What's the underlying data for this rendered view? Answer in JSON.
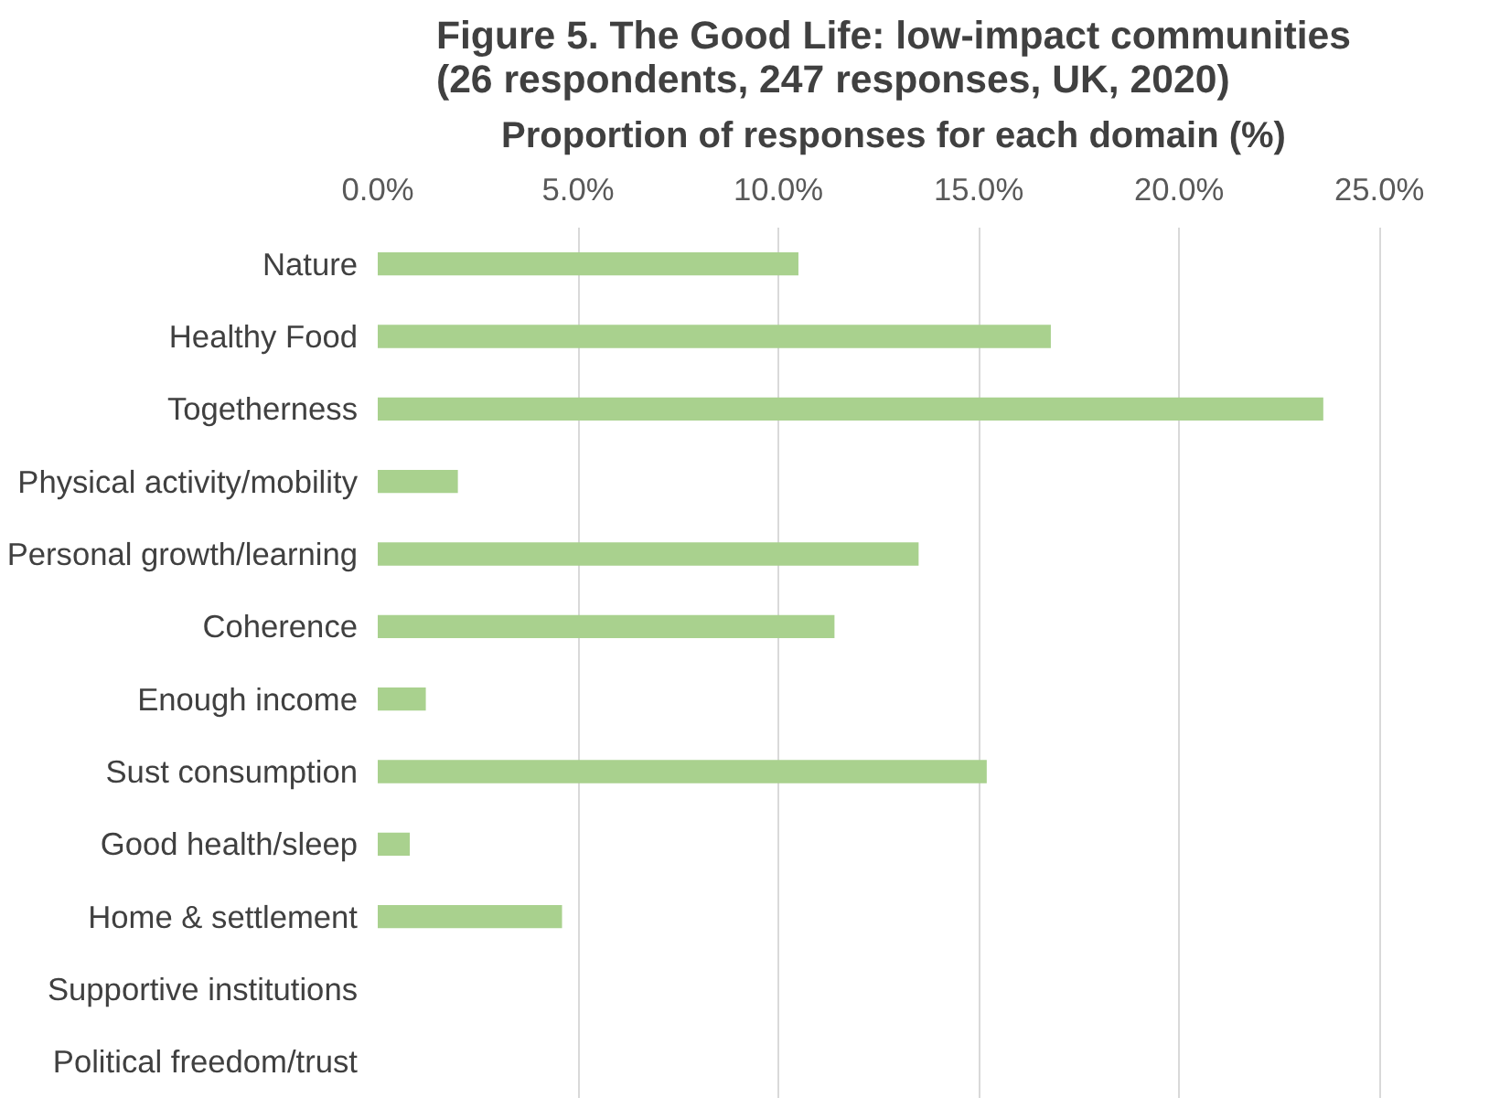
{
  "chart_data": {
    "type": "bar",
    "orientation": "horizontal",
    "title": "Figure 5. The Good Life: low-impact communities\n(26 respondents, 247 responses, UK, 2020)",
    "xlabel": "Proportion of responses for each domain (%)",
    "categories": [
      "Nature",
      "Healthy Food",
      "Togetherness",
      "Physical activity/mobility",
      "Personal growth/learning",
      "Coherence",
      "Enough income",
      "Sust consumption",
      "Good health/sleep",
      "Home & settlement",
      "Supportive institutions",
      "Political freedom/trust"
    ],
    "values": [
      10.5,
      16.8,
      23.6,
      2.0,
      13.5,
      11.4,
      1.2,
      15.2,
      0.8,
      4.6,
      0,
      0
    ],
    "color": "#a9d18e",
    "xlim": [
      0,
      25
    ],
    "xticks": [
      {
        "value": 0,
        "label": "0.0%"
      },
      {
        "value": 5,
        "label": "5.0%"
      },
      {
        "value": 10,
        "label": "10.0%"
      },
      {
        "value": 15,
        "label": "15.0%"
      },
      {
        "value": 20,
        "label": "20.0%"
      },
      {
        "value": 25,
        "label": "25.0%"
      }
    ],
    "grid": "x"
  }
}
